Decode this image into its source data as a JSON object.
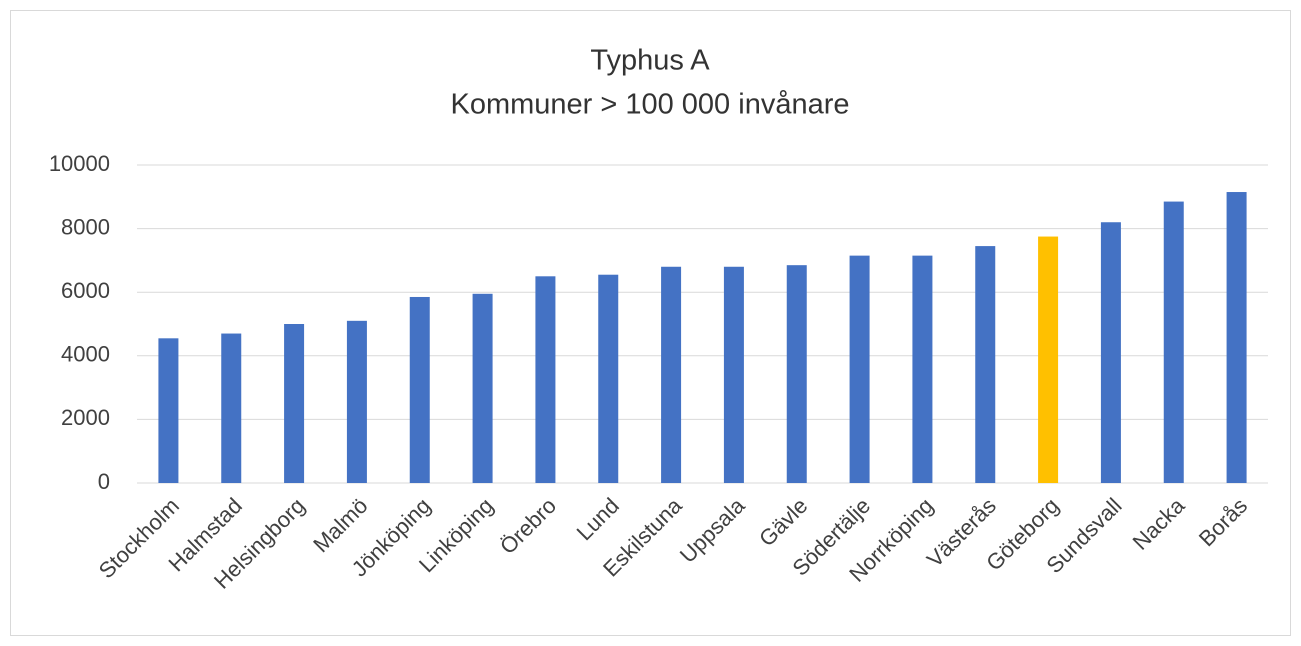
{
  "chart_data": {
    "type": "bar",
    "title": "Typhus A",
    "subtitle": "Kommuner > 100 000 invånare",
    "categories": [
      "Stockholm",
      "Halmstad",
      "Helsingborg",
      "Malmö",
      "Jönköping",
      "Linköping",
      "Örebro",
      "Lund",
      "Eskilstuna",
      "Uppsala",
      "Gävle",
      "Södertälje",
      "Norrköping",
      "Västerås",
      "Göteborg",
      "Sundsvall",
      "Nacka",
      "Borås"
    ],
    "values": [
      4550,
      4700,
      5000,
      5100,
      5850,
      5950,
      6500,
      6550,
      6800,
      6800,
      6850,
      7150,
      7150,
      7450,
      7750,
      8200,
      8850,
      9150
    ],
    "colors": [
      "#4472c4",
      "#4472c4",
      "#4472c4",
      "#4472c4",
      "#4472c4",
      "#4472c4",
      "#4472c4",
      "#4472c4",
      "#4472c4",
      "#4472c4",
      "#4472c4",
      "#4472c4",
      "#4472c4",
      "#4472c4",
      "#ffc000",
      "#4472c4",
      "#4472c4",
      "#4472c4"
    ],
    "ylim": [
      0,
      10000
    ],
    "yticks": [
      0,
      2000,
      4000,
      6000,
      8000,
      10000
    ],
    "grid": true
  }
}
